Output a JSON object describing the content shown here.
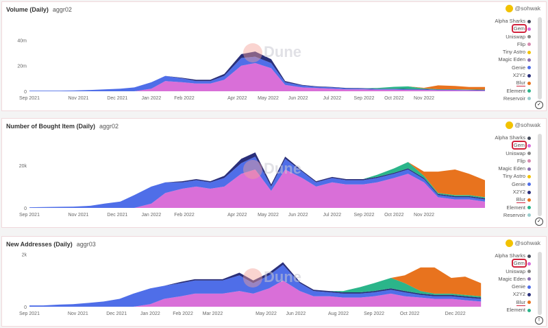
{
  "author": "@sohwak",
  "colors": {
    "Alpha Sharks": "#444a5a",
    "Gem": "#d96fd8",
    "Uniswap": "#888",
    "Flip": "#d78ab0",
    "Tiny Astro": "#f2c200",
    "Magic Eden": "#8a6fb0",
    "Genie": "#4f6ee8",
    "X2Y2": "#2a2f7a",
    "Blur": "#e8731e",
    "Element": "#2bb58a"
  },
  "watermark": "Dune",
  "chart_data": [
    {
      "type": "area",
      "title": "Volume (Daily)",
      "subtitle": "aggr02",
      "xlim": [
        "2021-09-01",
        "2022-12-01"
      ],
      "ylim": [
        0,
        60
      ],
      "ytick_labels": [
        [
          "0",
          0
        ],
        [
          "20m",
          20
        ],
        [
          "40m",
          40
        ]
      ],
      "xtick_labels": [
        [
          "Sep 2021",
          "2021-09-01"
        ],
        [
          "Nov 2021",
          "2021-10-20"
        ],
        [
          "Dec 2021",
          "2021-11-28"
        ],
        [
          "Jan 2022",
          "2022-01-01"
        ],
        [
          "Feb 2022",
          "2022-02-03"
        ],
        [
          "Apr 2022",
          "2022-03-28"
        ],
        [
          "May 2022",
          "2022-04-28"
        ],
        [
          "Jun 2022",
          "2022-05-28"
        ],
        [
          "Jul 2022",
          "2022-07-01"
        ],
        [
          "Sep 2022",
          "2022-08-02"
        ],
        [
          "Oct 2022",
          "2022-09-01"
        ],
        [
          "Nov 2022",
          "2022-10-01"
        ]
      ],
      "legend": [
        "Alpha Sharks",
        "Gem",
        "Uniswap",
        "Flip",
        "Tiny Astro",
        "Magic Eden",
        "Genie",
        "X2Y2",
        "Blur",
        "Element",
        "Reservoir"
      ],
      "x": [
        "2021-09-01",
        "2021-09-15",
        "2021-10-01",
        "2021-10-15",
        "2021-11-01",
        "2021-11-15",
        "2021-12-01",
        "2021-12-15",
        "2022-01-01",
        "2022-01-15",
        "2022-02-01",
        "2022-02-15",
        "2022-03-01",
        "2022-03-15",
        "2022-04-01",
        "2022-04-15",
        "2022-05-01",
        "2022-05-15",
        "2022-06-01",
        "2022-06-15",
        "2022-07-01",
        "2022-07-15",
        "2022-08-01",
        "2022-08-15",
        "2022-09-01",
        "2022-09-15",
        "2022-10-01",
        "2022-10-15",
        "2022-11-01",
        "2022-11-15",
        "2022-12-01"
      ],
      "series": [
        {
          "name": "Gem",
          "values": [
            0,
            0,
            0,
            0,
            0,
            0,
            0,
            0,
            2,
            8,
            7,
            6,
            6,
            9,
            20,
            22,
            18,
            5,
            3,
            2.5,
            2,
            1.5,
            1.5,
            1.2,
            1.2,
            1,
            1,
            0.8,
            0.8,
            0.6,
            0.5
          ]
        },
        {
          "name": "Genie",
          "values": [
            0.5,
            0.5,
            0.5,
            0.6,
            1,
            1.5,
            2,
            3,
            5,
            4,
            3,
            2,
            2,
            3,
            6,
            5,
            4,
            2,
            1.5,
            1,
            1,
            0.8,
            0.6,
            0.5,
            0.5,
            0.5,
            0.4,
            0.3,
            0.3,
            0.3,
            0.3
          ]
        },
        {
          "name": "X2Y2",
          "values": [
            0,
            0,
            0,
            0,
            0,
            0,
            0,
            0,
            0,
            0,
            0.5,
            1,
            1,
            1.5,
            3,
            4,
            3,
            1,
            0.5,
            0.4,
            0.3,
            0.3,
            0.3,
            0.3,
            0.3,
            0.3,
            0.3,
            0.2,
            0.2,
            0.2,
            0.2
          ]
        },
        {
          "name": "Element",
          "values": [
            0,
            0,
            0,
            0,
            0,
            0,
            0,
            0,
            0,
            0,
            0,
            0,
            0,
            0,
            0,
            0,
            0,
            0,
            0,
            0,
            0,
            0,
            0,
            0.5,
            1.5,
            2,
            0.5,
            0.3,
            0.3,
            0.3,
            0.3
          ]
        },
        {
          "name": "Blur",
          "values": [
            0,
            0,
            0,
            0,
            0,
            0,
            0,
            0,
            0,
            0,
            0,
            0,
            0,
            0,
            0,
            0,
            0,
            0,
            0,
            0,
            0,
            0,
            0,
            0,
            0,
            0,
            0.5,
            3,
            2.5,
            2,
            2
          ]
        }
      ]
    },
    {
      "type": "area",
      "title": "Number of Bought Item (Daily)",
      "subtitle": "aggr02",
      "xlim": [
        "2021-09-01",
        "2022-12-01"
      ],
      "ylim": [
        0,
        36
      ],
      "ytick_labels": [
        [
          "0",
          0
        ],
        [
          "20k",
          20
        ]
      ],
      "xtick_labels": [
        [
          "Sep 2021",
          "2021-09-01"
        ],
        [
          "Nov 2021",
          "2021-10-20"
        ],
        [
          "Dec 2021",
          "2021-11-28"
        ],
        [
          "Jan 2022",
          "2022-01-01"
        ],
        [
          "Feb 2022",
          "2022-02-03"
        ],
        [
          "Apr 2022",
          "2022-03-28"
        ],
        [
          "May 2022",
          "2022-04-28"
        ],
        [
          "Jun 2022",
          "2022-05-28"
        ],
        [
          "Jul 2022",
          "2022-07-01"
        ],
        [
          "Sep 2022",
          "2022-08-02"
        ],
        [
          "Oct 2022",
          "2022-09-01"
        ],
        [
          "Nov 2022",
          "2022-10-01"
        ]
      ],
      "legend": [
        "Alpha Sharks",
        "Gem",
        "Uniswap",
        "Flip",
        "Magic Eden",
        "Tiny Astro",
        "Genie",
        "X2Y2",
        "Blur",
        "Element",
        "Reservoir"
      ],
      "x": [
        "2021-09-01",
        "2021-09-15",
        "2021-10-01",
        "2021-10-15",
        "2021-11-01",
        "2021-11-15",
        "2021-12-01",
        "2021-12-15",
        "2022-01-01",
        "2022-01-15",
        "2022-02-01",
        "2022-02-15",
        "2022-03-01",
        "2022-03-15",
        "2022-04-01",
        "2022-04-15",
        "2022-05-01",
        "2022-05-15",
        "2022-06-01",
        "2022-06-15",
        "2022-07-01",
        "2022-07-15",
        "2022-08-01",
        "2022-08-15",
        "2022-09-01",
        "2022-09-15",
        "2022-10-01",
        "2022-10-15",
        "2022-11-01",
        "2022-11-15",
        "2022-12-01"
      ],
      "series": [
        {
          "name": "Gem",
          "values": [
            0,
            0,
            0,
            0,
            0,
            0,
            0,
            0,
            2,
            7,
            9,
            10,
            9,
            10,
            16,
            18,
            8,
            18,
            14,
            10,
            12,
            11,
            11,
            12,
            14,
            16,
            12,
            5,
            4,
            4,
            3
          ]
        },
        {
          "name": "Genie",
          "values": [
            0.3,
            0.4,
            0.5,
            0.6,
            1,
            2,
            3,
            6,
            8,
            5,
            3,
            3,
            3,
            4,
            5,
            6,
            2,
            5,
            3,
            2,
            2,
            2,
            2,
            2,
            2,
            2,
            1.5,
            1,
            1,
            1,
            1
          ]
        },
        {
          "name": "X2Y2",
          "values": [
            0,
            0,
            0,
            0,
            0,
            0,
            0,
            0,
            0,
            0,
            0.5,
            0.5,
            0.5,
            1,
            2,
            2,
            1,
            1,
            0.5,
            0.5,
            0.5,
            0.5,
            0.5,
            0.5,
            0.5,
            0.5,
            0.5,
            0.5,
            0.5,
            0.5,
            0.5
          ]
        },
        {
          "name": "Element",
          "values": [
            0,
            0,
            0,
            0,
            0,
            0,
            0,
            0,
            0,
            0,
            0,
            0,
            0,
            0,
            0,
            0,
            0,
            0,
            0,
            0,
            0,
            0,
            0,
            1,
            2,
            3,
            1,
            0.5,
            0.5,
            0.5,
            0.5
          ]
        },
        {
          "name": "Blur",
          "values": [
            0,
            0,
            0,
            0,
            0,
            0,
            0,
            0,
            0,
            0,
            0,
            0,
            0,
            0,
            0,
            0,
            0,
            0,
            0,
            0,
            0,
            0,
            0,
            0,
            0,
            0,
            2,
            10,
            12,
            10,
            8
          ]
        }
      ]
    },
    {
      "type": "area",
      "title": "New Addresses (Daily)",
      "subtitle": "aggr03",
      "xlim": [
        "2021-09-01",
        "2022-12-05"
      ],
      "ylim": [
        0,
        2.2
      ],
      "ytick_labels": [
        [
          "0",
          0
        ],
        [
          "2k",
          2
        ]
      ],
      "xtick_labels": [
        [
          "Sep 2021",
          "2021-09-01"
        ],
        [
          "Nov 2021",
          "2021-10-20"
        ],
        [
          "Dec 2021",
          "2021-11-28"
        ],
        [
          "Jan 2022",
          "2022-01-01"
        ],
        [
          "Feb 2022",
          "2022-02-03"
        ],
        [
          "Mar 2022",
          "2022-03-05"
        ],
        [
          "May 2022",
          "2022-04-28"
        ],
        [
          "Jun 2022",
          "2022-05-28"
        ],
        [
          "Aug 2022",
          "2022-07-10"
        ],
        [
          "Sep 2022",
          "2022-08-15"
        ],
        [
          "Oct 2022",
          "2022-09-20"
        ],
        [
          "Dec 2022",
          "2022-11-05"
        ]
      ],
      "legend": [
        "Alpha Sharks",
        "Gem",
        "Uniswap",
        "Magic Eden",
        "Genie",
        "X2Y2",
        "Blur",
        "Element"
      ],
      "x": [
        "2021-09-01",
        "2021-09-15",
        "2021-10-01",
        "2021-10-15",
        "2021-11-01",
        "2021-11-15",
        "2021-12-01",
        "2021-12-15",
        "2022-01-01",
        "2022-01-15",
        "2022-02-01",
        "2022-02-15",
        "2022-03-01",
        "2022-03-15",
        "2022-04-01",
        "2022-04-15",
        "2022-05-01",
        "2022-05-15",
        "2022-06-01",
        "2022-06-15",
        "2022-07-01",
        "2022-07-15",
        "2022-08-01",
        "2022-08-15",
        "2022-09-01",
        "2022-09-15",
        "2022-10-01",
        "2022-10-15",
        "2022-11-01",
        "2022-11-15",
        "2022-12-01"
      ],
      "series": [
        {
          "name": "Gem",
          "values": [
            0,
            0,
            0,
            0,
            0,
            0,
            0,
            0,
            0.1,
            0.3,
            0.4,
            0.5,
            0.5,
            0.5,
            0.6,
            0.5,
            0.7,
            1.0,
            0.6,
            0.4,
            0.4,
            0.35,
            0.35,
            0.4,
            0.5,
            0.4,
            0.35,
            0.3,
            0.3,
            0.25,
            0.2
          ]
        },
        {
          "name": "Genie",
          "values": [
            0.05,
            0.05,
            0.08,
            0.1,
            0.15,
            0.2,
            0.3,
            0.5,
            0.6,
            0.5,
            0.5,
            0.5,
            0.5,
            0.5,
            0.6,
            0.4,
            0.5,
            0.6,
            0.3,
            0.2,
            0.15,
            0.15,
            0.15,
            0.15,
            0.15,
            0.15,
            0.1,
            0.1,
            0.1,
            0.1,
            0.1
          ]
        },
        {
          "name": "X2Y2",
          "values": [
            0,
            0,
            0,
            0,
            0,
            0,
            0,
            0,
            0,
            0,
            0.05,
            0.05,
            0.05,
            0.05,
            0.1,
            0.1,
            0.1,
            0.1,
            0.05,
            0.05,
            0.05,
            0.05,
            0.05,
            0.05,
            0.05,
            0.05,
            0.05,
            0.05,
            0.05,
            0.05,
            0.05
          ]
        },
        {
          "name": "Element",
          "values": [
            0,
            0,
            0,
            0,
            0,
            0,
            0,
            0,
            0,
            0,
            0,
            0,
            0,
            0,
            0,
            0,
            0,
            0,
            0,
            0,
            0,
            0.05,
            0.2,
            0.3,
            0.4,
            0.3,
            0.1,
            0.05,
            0.05,
            0.05,
            0.05
          ]
        },
        {
          "name": "Blur",
          "values": [
            0,
            0,
            0,
            0,
            0,
            0,
            0,
            0,
            0,
            0,
            0,
            0,
            0,
            0,
            0,
            0,
            0,
            0,
            0,
            0,
            0,
            0,
            0,
            0,
            0,
            0.3,
            0.9,
            1.0,
            0.6,
            0.7,
            0.5
          ]
        }
      ]
    }
  ]
}
